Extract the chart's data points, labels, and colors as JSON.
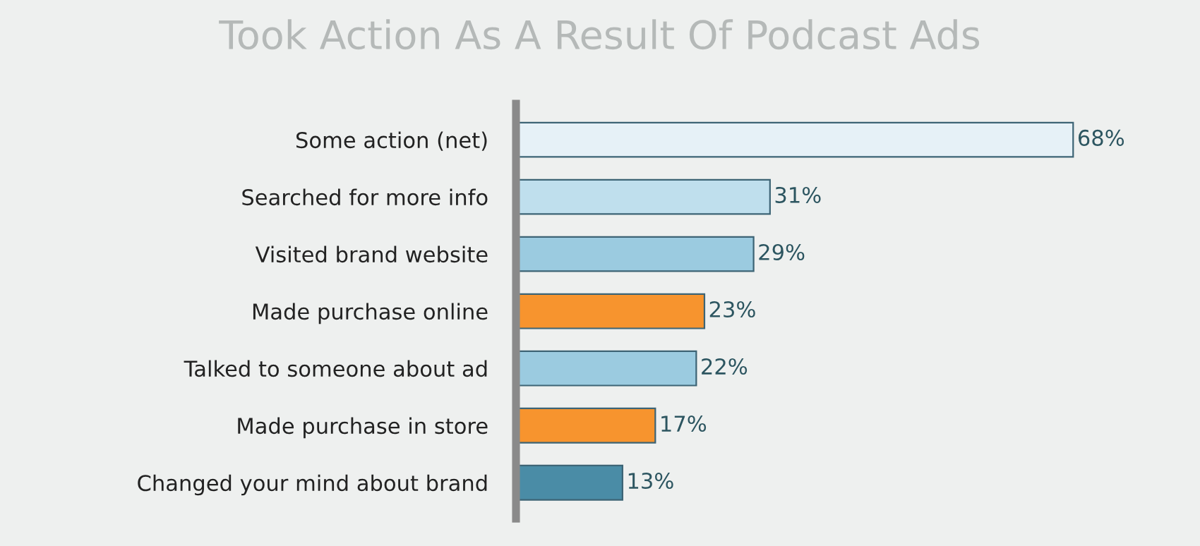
{
  "chart_data": {
    "type": "bar",
    "orientation": "horizontal",
    "title": "Took Action As A Result Of Podcast Ads",
    "categories": [
      "Some action (net)",
      "Searched for more info",
      "Visited brand website",
      "Made purchase online",
      "Talked to someone about ad",
      "Made purchase in store",
      "Changed your mind about brand"
    ],
    "values": [
      68,
      31,
      29,
      23,
      22,
      17,
      13
    ],
    "value_labels": [
      "68%",
      "31%",
      "29%",
      "23%",
      "22%",
      "17%",
      "13%"
    ],
    "colors": [
      "#e6f1f7",
      "#bfdfed",
      "#9bcbe0",
      "#f7942e",
      "#9bcbe0",
      "#f7942e",
      "#4a8ca6"
    ],
    "grid": false,
    "legend": false
  }
}
